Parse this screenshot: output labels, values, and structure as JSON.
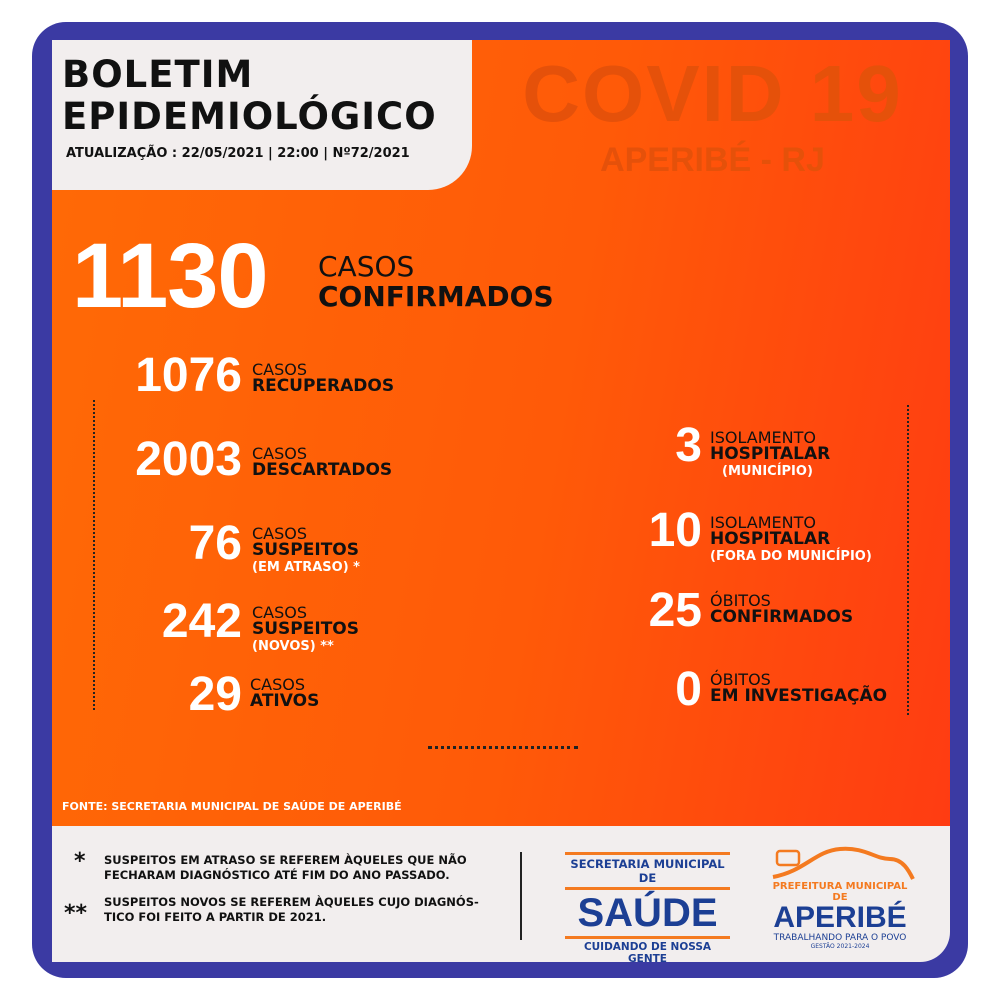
{
  "header": {
    "title_line1": "BOLETIM",
    "title_line2": "EPIDEMIOLÓGICO",
    "update": "ATUALIZAÇÃO : 22/05/2021  | 22:00  |  Nº72/2021"
  },
  "watermark": {
    "title": "COVID 19",
    "subtitle": "APERIBÉ - RJ"
  },
  "confirmed": {
    "value": "1130",
    "label1": "CASOS",
    "label2": "CONFIRMADOS"
  },
  "left_stats": [
    {
      "value": "1076",
      "label1": "CASOS",
      "label2": "RECUPERADOS"
    },
    {
      "value": "2003",
      "label1": "CASOS",
      "label2": "DESCARTADOS"
    },
    {
      "value": "76",
      "label1": "CASOS",
      "label2": "SUSPEITOS",
      "label3": "(EM ATRASO) *"
    },
    {
      "value": "242",
      "label1": "CASOS",
      "label2": "SUSPEITOS",
      "label3": "(NOVOS) **"
    },
    {
      "value": "29",
      "label1": "CASOS",
      "label2": "ATIVOS"
    }
  ],
  "right_stats": [
    {
      "value": "3",
      "label1": "ISOLAMENTO",
      "label2": "HOSPITALAR",
      "label3": "(MUNICÍPIO)"
    },
    {
      "value": "10",
      "label1": "ISOLAMENTO",
      "label2": "HOSPITALAR",
      "label3": "(FORA DO MUNICÍPIO)"
    },
    {
      "value": "25",
      "label1": "ÓBITOS",
      "label2": "CONFIRMADOS"
    },
    {
      "value": "0",
      "label1": "ÓBITOS",
      "label2": "EM INVESTIGAÇÃO"
    }
  ],
  "source": "FONTE: SECRETARIA MUNICIPAL DE SAÚDE DE APERIBÉ",
  "notes": [
    {
      "mark": "*",
      "text1": "SUSPEITOS EM ATRASO SE REFEREM ÀQUELES QUE NÃO",
      "text2": "FECHARAM DIAGNÓSTICO ATÉ FIM DO ANO PASSADO."
    },
    {
      "mark": "**",
      "text1": "SUSPEITOS NOVOS SE REFEREM ÀQUELES CUJO DIAGNÓS-",
      "text2": "TICO FOI FEITO A PARTIR DE 2021."
    }
  ],
  "logo_saude": {
    "top": "SECRETARIA MUNICIPAL DE",
    "main": "SAÚDE",
    "bottom": "CUIDANDO DE NOSSA GENTE"
  },
  "logo_aperibe": {
    "top": "PREFEITURA MUNICIPAL DE",
    "main": "APERIBÉ",
    "tagline": "TRABALHANDO PARA O POVO",
    "term": "GESTÃO 2021-2024"
  },
  "colors": {
    "frame": "#3b3aa3",
    "orange": "#ff5a08",
    "logo_blue": "#1c3f94",
    "logo_orange": "#f47a20"
  }
}
